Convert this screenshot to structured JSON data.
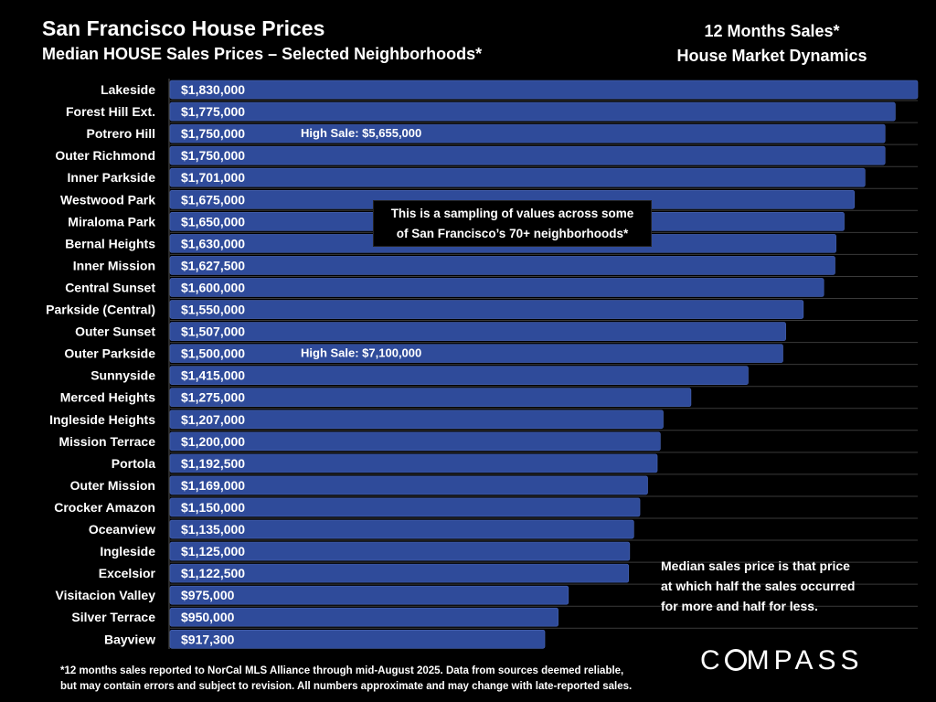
{
  "header": {
    "title": "San Francisco House Prices",
    "subtitle": "Median HOUSE Sales Prices – Selected Neighborhoods*",
    "right_line1": "12 Months Sales*",
    "right_line2": "House Market Dynamics"
  },
  "callout": {
    "line1": "This is a sampling of values across some",
    "line2": "of San Francisco’s 70+ neighborhoods*"
  },
  "note": {
    "line1": "Median sales price is that price",
    "line2": "at which half the sales occurred",
    "line3": "for more and half for less."
  },
  "footnote": {
    "line1": "*12 months sales reported to NorCal MLS Alliance through mid-August 2025. Data from sources deemed reliable,",
    "line2": "but may contain errors and subject to revision. All numbers approximate and may change with late-reported sales."
  },
  "logo": {
    "text": "COMPASS"
  },
  "colors": {
    "bar": "#2f4b9a",
    "bar_edge": "#4a66b5",
    "background": "#000000",
    "gridline": "#3a3a3a"
  },
  "chart_data": {
    "type": "bar",
    "orientation": "horizontal",
    "title": "San Francisco House Prices",
    "subtitle": "Median HOUSE Sales Prices – Selected Neighborhoods*",
    "categories": [
      "Lakeside",
      "Forest Hill Ext.",
      "Potrero Hill",
      "Outer Richmond",
      "Inner Parkside",
      "Westwood Park",
      "Miraloma Park",
      "Bernal Heights",
      "Inner Mission",
      "Central Sunset",
      "Parkside (Central)",
      "Outer Sunset",
      "Outer Parkside",
      "Sunnyside",
      "Merced Heights",
      "Ingleside Heights",
      "Mission Terrace",
      "Portola",
      "Outer Mission",
      "Crocker Amazon",
      "Oceanview",
      "Ingleside",
      "Excelsior",
      "Visitacion Valley",
      "Silver Terrace",
      "Bayview"
    ],
    "values": [
      1830000,
      1775000,
      1750000,
      1750000,
      1701000,
      1675000,
      1650000,
      1630000,
      1627500,
      1600000,
      1550000,
      1507000,
      1500000,
      1415000,
      1275000,
      1207000,
      1200000,
      1192500,
      1169000,
      1150000,
      1135000,
      1125000,
      1122500,
      975000,
      950000,
      917300
    ],
    "value_labels": [
      "$1,830,000",
      "$1,775,000",
      "$1,750,000",
      "$1,750,000",
      "$1,701,000",
      "$1,675,000",
      "$1,650,000",
      "$1,630,000",
      "$1,627,500",
      "$1,600,000",
      "$1,550,000",
      "$1,507,000",
      "$1,500,000",
      "$1,415,000",
      "$1,275,000",
      "$1,207,000",
      "$1,200,000",
      "$1,192,500",
      "$1,169,000",
      "$1,150,000",
      "$1,135,000",
      "$1,125,000",
      "$1,122,500",
      "$975,000",
      "$950,000",
      "$917,300"
    ],
    "annotations": [
      {
        "category": "Potrero Hill",
        "text": "High Sale:  $5,655,000"
      },
      {
        "category": "Outer Parkside",
        "text": "High Sale:  $7,100,000"
      }
    ],
    "xlim": [
      0,
      1830000
    ],
    "grid": true,
    "legend": "none"
  }
}
